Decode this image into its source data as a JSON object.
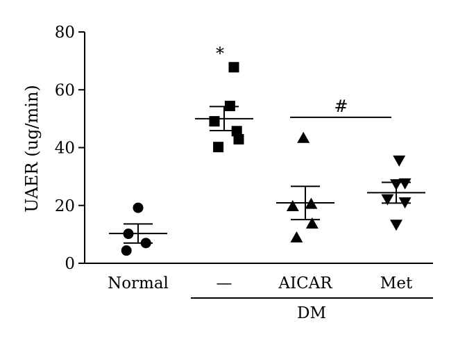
{
  "chart_data": {
    "type": "scatter",
    "ylabel": "UAER (ug/min)",
    "ylim": [
      0,
      80
    ],
    "yticks": [
      0,
      20,
      40,
      60,
      80
    ],
    "categories": [
      "Normal",
      "—",
      "AICAR",
      "Met"
    ],
    "group_label": "DM",
    "series": [
      {
        "category": "Normal",
        "marker": "circle",
        "points": [
          {
            "offset": 0,
            "y": 19.2
          },
          {
            "offset": -0.5,
            "y": 10.2
          },
          {
            "offset": 0.4,
            "y": 7.0
          },
          {
            "offset": -0.6,
            "y": 4.4
          }
        ],
        "mean": 10.3,
        "sem_upper": 13.6,
        "sem_lower": 7.0
      },
      {
        "category": "—",
        "marker": "square",
        "points": [
          {
            "offset": 0.5,
            "y": 67.8
          },
          {
            "offset": 0.3,
            "y": 54.4
          },
          {
            "offset": -0.5,
            "y": 49.1
          },
          {
            "offset": 0.65,
            "y": 45.7
          },
          {
            "offset": 0.75,
            "y": 42.9
          },
          {
            "offset": -0.3,
            "y": 40.2
          }
        ],
        "mean": 50.0,
        "sem_upper": 54.2,
        "sem_lower": 45.9,
        "annotation": "*"
      },
      {
        "category": "AICAR",
        "marker": "triangle-up",
        "points": [
          {
            "offset": -0.1,
            "y": 43.3
          },
          {
            "offset": 0.3,
            "y": 20.5
          },
          {
            "offset": -0.65,
            "y": 19.7
          },
          {
            "offset": 0.35,
            "y": 13.7
          },
          {
            "offset": -0.45,
            "y": 8.9
          }
        ],
        "mean": 20.9,
        "sem_upper": 26.6,
        "sem_lower": 15.1
      },
      {
        "category": "Met",
        "marker": "triangle-down",
        "points": [
          {
            "offset": 0.15,
            "y": 35.6
          },
          {
            "offset": 0.0,
            "y": 27.4
          },
          {
            "offset": 0.45,
            "y": 27.7
          },
          {
            "offset": -0.45,
            "y": 22.2
          },
          {
            "offset": 0.45,
            "y": 21.1
          },
          {
            "offset": 0.0,
            "y": 13.4
          }
        ],
        "mean": 24.4,
        "sem_upper": 28.0,
        "sem_lower": 20.8
      }
    ],
    "comparison": {
      "from": "AICAR",
      "to": "Met",
      "y": 50.0,
      "label": "#"
    }
  }
}
